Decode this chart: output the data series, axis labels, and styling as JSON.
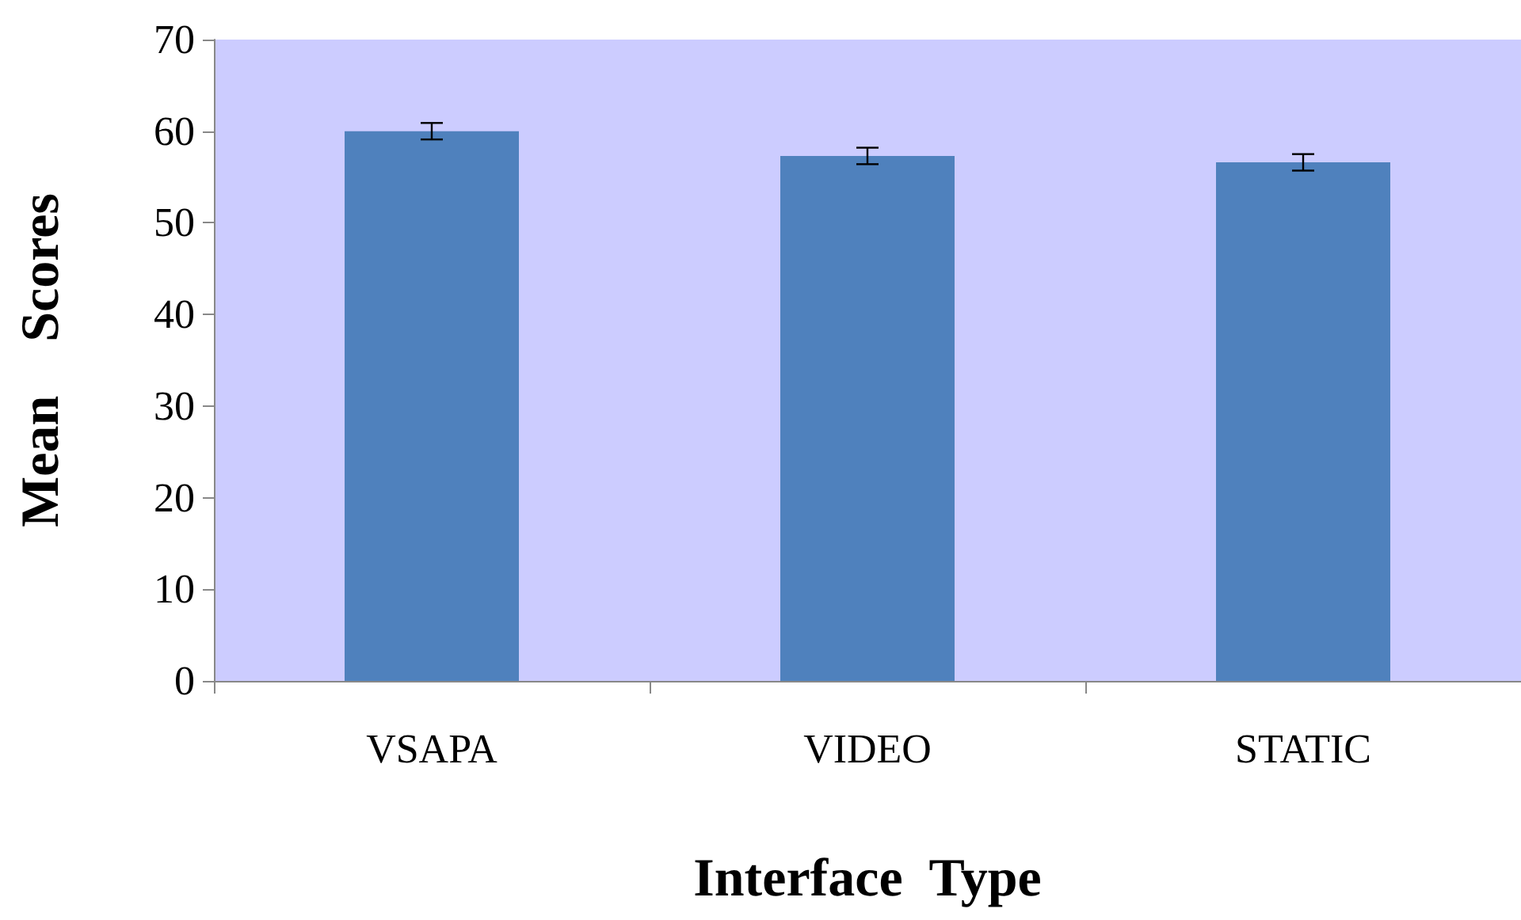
{
  "chart_data": {
    "type": "bar",
    "xlabel": "Interface  Type",
    "ylabel": "Mean    Scores",
    "categories": [
      "VSAPA",
      "VIDEO",
      "STATIC"
    ],
    "values": [
      60,
      57.3,
      56.6
    ],
    "errors": [
      0.9,
      0.9,
      0.9
    ],
    "color": "#4f81bd",
    "ylim": [
      0,
      70
    ],
    "yticks": [
      0,
      10,
      20,
      30,
      40,
      50,
      60,
      70
    ],
    "grid": false
  }
}
